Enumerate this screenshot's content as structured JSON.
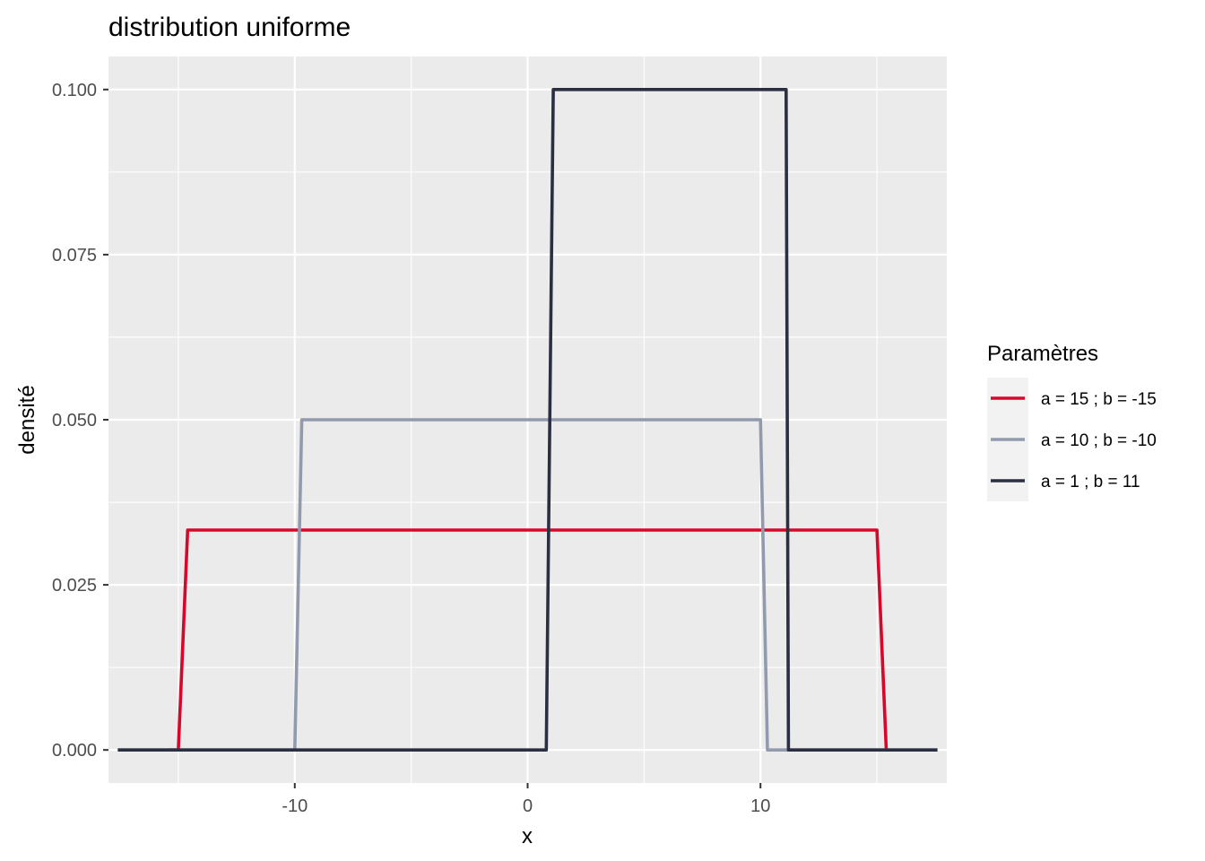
{
  "chart_data": {
    "type": "line",
    "title": "distribution uniforme",
    "xlabel": "x",
    "ylabel": "densité",
    "xlim": [
      -18,
      18
    ],
    "ylim": [
      -0.005,
      0.105
    ],
    "x_ticks": [
      -10,
      0,
      10
    ],
    "x_tick_labels": [
      "-10",
      "0",
      "10"
    ],
    "y_ticks": [
      0,
      0.025,
      0.05,
      0.075,
      0.1
    ],
    "y_tick_labels": [
      "0.000",
      "0.025",
      "0.050",
      "0.075",
      "0.100"
    ],
    "grid": true,
    "legend": {
      "title": "Paramètres",
      "position": "right"
    },
    "series": [
      {
        "name": "a = 15 ; b = -15",
        "color": "#d7072c",
        "points": [
          [
            -15.4,
            0
          ],
          [
            -15.0,
            0
          ],
          [
            -14.6,
            0.0333
          ],
          [
            14.6,
            0.0333
          ],
          [
            15.0,
            0.0333
          ],
          [
            15.4,
            0
          ]
        ]
      },
      {
        "name": "a = 10 ; b = -10",
        "color": "#919bad",
        "points": [
          [
            -17.6,
            0
          ],
          [
            -10.0,
            0
          ],
          [
            -9.7,
            0.05
          ],
          [
            9.7,
            0.05
          ],
          [
            10.0,
            0.05
          ],
          [
            10.3,
            0
          ],
          [
            17.6,
            0
          ]
        ]
      },
      {
        "name": "a = 1 ; b = 11",
        "color": "#2b2f42",
        "points": [
          [
            -17.6,
            0
          ],
          [
            0.8,
            0
          ],
          [
            1.1,
            0.1
          ],
          [
            10.8,
            0.1
          ],
          [
            11.1,
            0.1
          ],
          [
            11.2,
            0
          ],
          [
            17.6,
            0
          ]
        ]
      }
    ]
  }
}
